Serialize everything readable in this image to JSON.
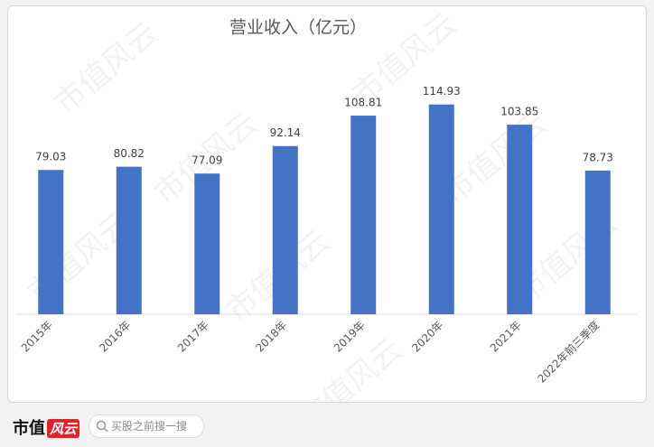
{
  "chart_data": {
    "type": "bar",
    "title": "营业收入（亿元）",
    "categories": [
      "2015年",
      "2016年",
      "2017年",
      "2018年",
      "2019年",
      "2020年",
      "2021年",
      "2022年前三季度"
    ],
    "values": [
      79.03,
      80.82,
      77.09,
      92.14,
      108.81,
      114.93,
      103.85,
      78.73
    ],
    "color": "#4472c4",
    "ylim": [
      0,
      140
    ]
  },
  "watermark": "市值风云",
  "footer": {
    "logo_text": "市值",
    "logo_badge": "风云",
    "search_placeholder": "买股之前搜一搜"
  }
}
